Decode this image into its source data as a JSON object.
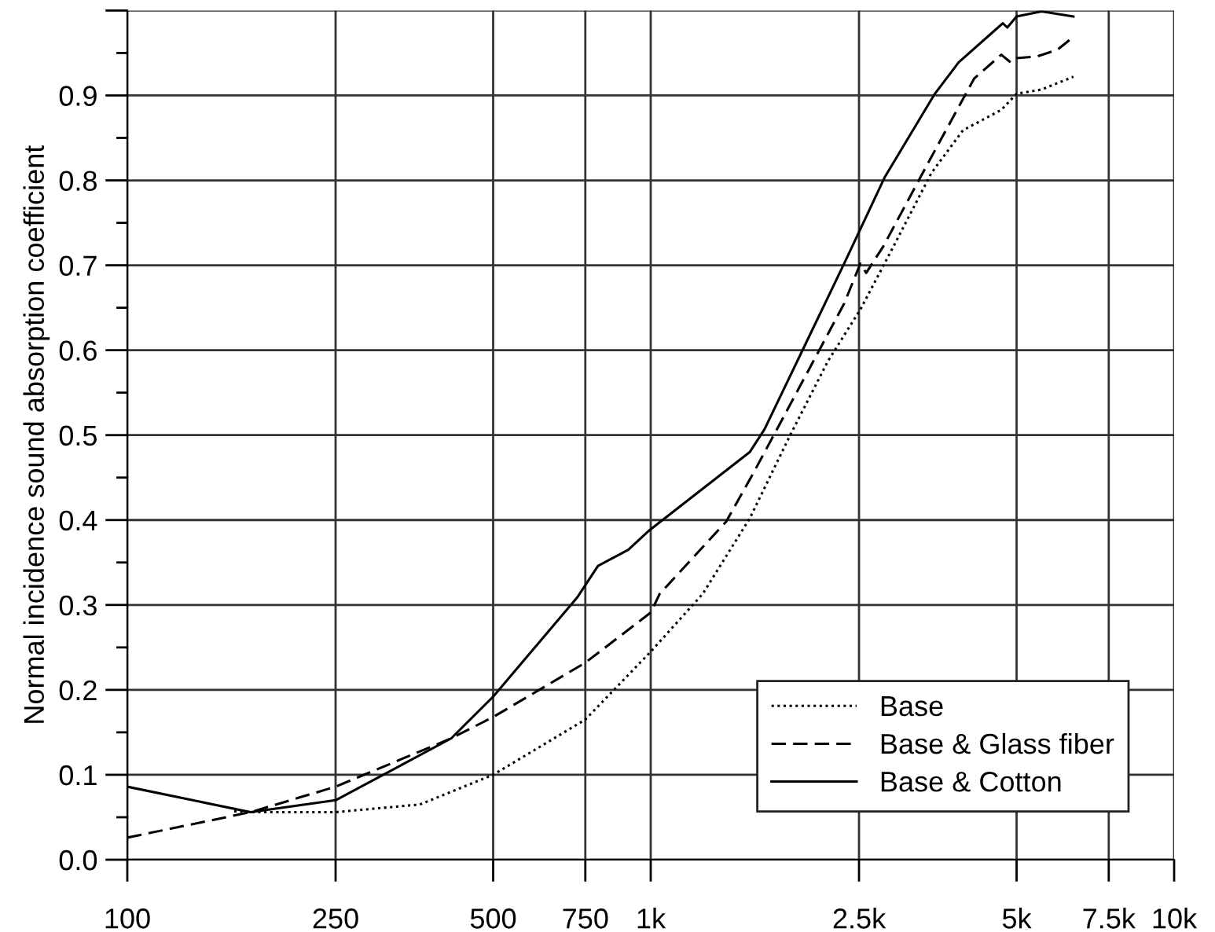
{
  "chart_data": {
    "type": "line",
    "ylabel": "Normal incidence sound absorption coefficient",
    "log": "x",
    "grid": true,
    "legend": "bottom right",
    "xlim": [
      100,
      10000
    ],
    "xticks": [
      100,
      250,
      500,
      750,
      {
        "value": 1000,
        "label": "1k"
      },
      {
        "value": 2500,
        "label": "2.5k"
      },
      {
        "value": 5000,
        "label": "5k"
      },
      {
        "value": 7500,
        "label": "7.5k"
      },
      {
        "value": 10000,
        "label": "10k"
      }
    ],
    "ylim": [
      0,
      1.0
    ],
    "yticks": [
      {
        "value": 0,
        "label": "0.0"
      },
      0.1,
      0.2,
      0.3,
      0.4,
      0.5,
      0.6,
      0.7,
      0.8,
      0.9,
      {
        "value": 1.0,
        "label": null
      }
    ],
    "series": [
      {
        "name": "Base",
        "color": "#000000",
        "line_style": "dotted",
        "x": [
          160,
          172,
          250,
          362,
          500,
          750,
          1000,
          1257,
          1546,
          1847,
          2180,
          2515,
          2880,
          3440,
          3950,
          4675,
          5000,
          5580,
          6420
        ],
        "values": [
          0.057,
          0.056,
          0.056,
          0.065,
          0.1,
          0.165,
          0.245,
          0.313,
          0.402,
          0.5,
          0.587,
          0.648,
          0.717,
          0.809,
          0.859,
          0.883,
          0.902,
          0.907,
          0.922
        ]
      },
      {
        "name": "Base & Glass fiber",
        "color": "#000000",
        "line_style": "dashed",
        "x": [
          100,
          172,
          250,
          416,
          500,
          750,
          1000,
          1040,
          1393,
          1576,
          1785,
          2124,
          2342,
          2515,
          2580,
          2780,
          3440,
          4150,
          4675,
          4870,
          5000,
          5480,
          5990,
          6420
        ],
        "values": [
          0.026,
          0.056,
          0.086,
          0.143,
          0.168,
          0.232,
          0.291,
          0.313,
          0.398,
          0.457,
          0.519,
          0.606,
          0.655,
          0.702,
          0.691,
          0.722,
          0.828,
          0.92,
          0.948,
          0.939,
          0.944,
          0.946,
          0.954,
          0.969
        ]
      },
      {
        "name": "Base & Cotton",
        "color": "#000000",
        "line_style": "solid",
        "x": [
          100,
          172,
          250,
          416,
          500,
          724,
          793,
          906,
          990,
          1546,
          1650,
          2342,
          2801,
          3490,
          3875,
          4706,
          4800,
          5000,
          5580,
          6420
        ],
        "values": [
          0.086,
          0.056,
          0.07,
          0.143,
          0.192,
          0.309,
          0.346,
          0.365,
          0.387,
          0.48,
          0.507,
          0.702,
          0.804,
          0.902,
          0.939,
          0.985,
          0.98,
          0.993,
          0.999,
          0.993
        ]
      }
    ]
  }
}
